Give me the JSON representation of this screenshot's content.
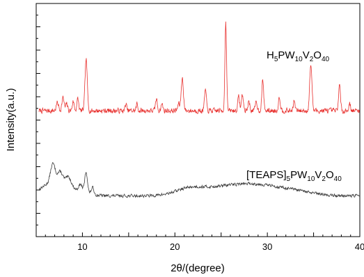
{
  "chart_data": {
    "type": "line",
    "xlabel": "2θ/(degree)",
    "ylabel": "Intensity(a.u.)",
    "xlim": [
      5,
      40
    ],
    "ylim": [
      0,
      100
    ],
    "x_ticks": [
      10,
      20,
      30,
      40
    ],
    "x_tick_labels": [
      "10",
      "20",
      "30",
      "40"
    ],
    "y_ticks_labeled": false,
    "grid": false,
    "series": [
      {
        "label_parts": [
          {
            "t": "H",
            "sub": false
          },
          {
            "t": "5",
            "sub": true
          },
          {
            "t": "PW",
            "sub": false
          },
          {
            "t": "10",
            "sub": true
          },
          {
            "t": "V",
            "sub": false
          },
          {
            "t": "2",
            "sub": true
          },
          {
            "t": "O",
            "sub": false
          },
          {
            "t": "40",
            "sub": true
          }
        ],
        "color": "#e8302e",
        "baseline": 54,
        "noise": 1.0,
        "seed": 7,
        "peaks": [
          [
            7.3,
            3.5,
            0.12
          ],
          [
            7.9,
            5.5,
            0.12
          ],
          [
            8.3,
            3,
            0.1
          ],
          [
            9.0,
            4,
            0.1
          ],
          [
            9.5,
            5,
            0.1
          ],
          [
            10.4,
            22,
            0.12
          ],
          [
            14.7,
            3,
            0.08
          ],
          [
            15.9,
            3,
            0.08
          ],
          [
            18.0,
            5,
            0.1
          ],
          [
            18.6,
            3,
            0.1
          ],
          [
            20.4,
            3,
            0.1
          ],
          [
            20.8,
            14,
            0.12
          ],
          [
            23.3,
            9,
            0.1
          ],
          [
            25.5,
            38,
            0.09
          ],
          [
            26.9,
            6,
            0.1
          ],
          [
            27.3,
            7,
            0.1
          ],
          [
            28.0,
            4,
            0.1
          ],
          [
            28.8,
            4,
            0.1
          ],
          [
            29.5,
            13,
            0.1
          ],
          [
            31.3,
            6,
            0.1
          ],
          [
            32.9,
            4,
            0.1
          ],
          [
            34.7,
            20,
            0.12
          ],
          [
            37.8,
            11,
            0.1
          ],
          [
            38.9,
            3,
            0.1
          ]
        ]
      },
      {
        "label_parts": [
          {
            "t": "[TEAPS]",
            "sub": false
          },
          {
            "t": "5",
            "sub": true
          },
          {
            "t": "PW",
            "sub": false
          },
          {
            "t": "10",
            "sub": true
          },
          {
            "t": "V",
            "sub": false
          },
          {
            "t": "2",
            "sub": true
          },
          {
            "t": "O",
            "sub": false
          },
          {
            "t": "40",
            "sub": true
          }
        ],
        "color": "#3c3c3c",
        "baseline": 17.5,
        "noise": 0.6,
        "seed": 13,
        "peaks": [
          [
            6.8,
            8,
            0.25
          ],
          [
            7.6,
            5,
            0.3
          ],
          [
            8.5,
            4,
            0.3
          ],
          [
            9.8,
            3,
            0.2
          ],
          [
            10.4,
            9,
            0.15
          ],
          [
            11.1,
            3,
            0.15
          ]
        ],
        "humps": [
          [
            6.5,
            4,
            1.2
          ],
          [
            8.3,
            3,
            1.5
          ],
          [
            21.5,
            2.5,
            1.5
          ],
          [
            25.0,
            3,
            2.5
          ],
          [
            29.0,
            4,
            2.5
          ],
          [
            33.0,
            1.5,
            2.0
          ]
        ]
      }
    ]
  }
}
